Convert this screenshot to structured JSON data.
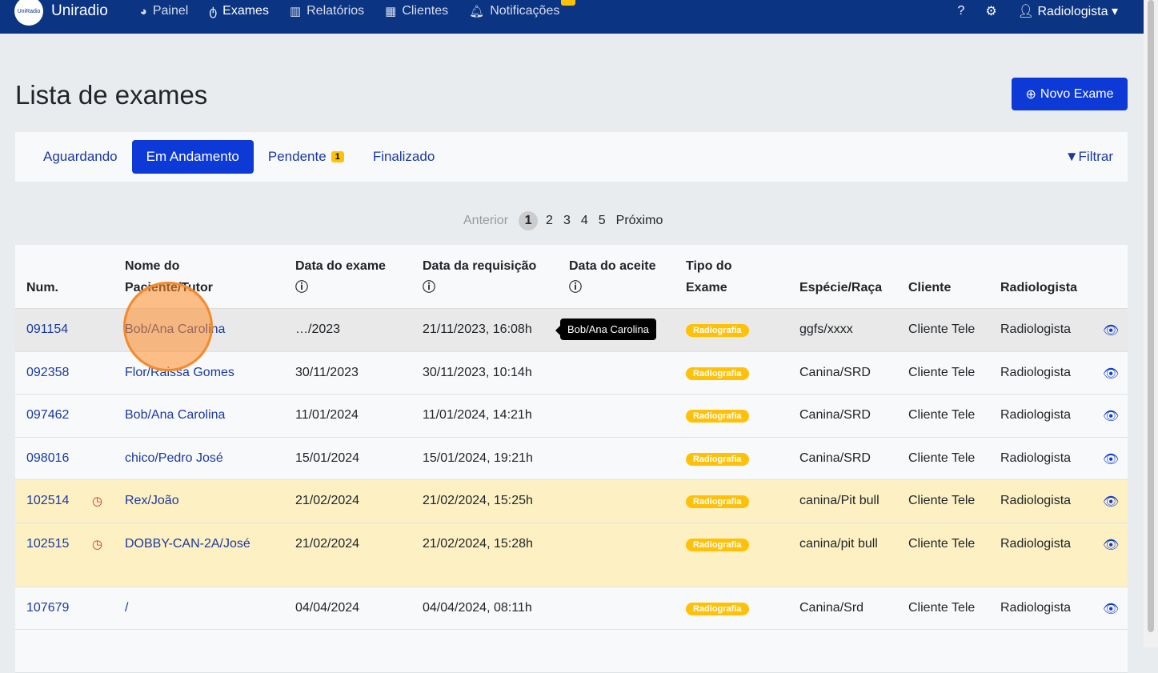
{
  "nav": {
    "brand": "Uniradio",
    "logo_text": "UniRadio",
    "items": [
      {
        "label": "Painel",
        "icon": "dashboard-icon"
      },
      {
        "label": "Exames",
        "icon": "stethoscope-icon"
      },
      {
        "label": "Relatórios",
        "icon": "chart-icon"
      },
      {
        "label": "Clientes",
        "icon": "building-icon"
      },
      {
        "label": "Notificações",
        "icon": "bell-icon"
      }
    ],
    "user": "Radiologista"
  },
  "page": {
    "title": "Lista de exames",
    "new_button": "Novo Exame"
  },
  "tabs": [
    {
      "label": "Aguardando"
    },
    {
      "label": "Em Andamento",
      "active": true
    },
    {
      "label": "Pendente",
      "badge": "1"
    },
    {
      "label": "Finalizado"
    }
  ],
  "filter": "Filtrar",
  "pagination": {
    "prev": "Anterior",
    "pages": [
      "1",
      "2",
      "3",
      "4",
      "5"
    ],
    "current": "1",
    "next": "Próximo"
  },
  "table": {
    "headers": [
      "Num.",
      "Nome do Paciente/Tutor",
      "Data do exame",
      "Data da requisição",
      "Data do aceite",
      "Tipo do Exame",
      "Espécie/Raça",
      "Cliente",
      "Radiologista"
    ],
    "rows": [
      {
        "num": "091154",
        "name": "Bob/Ana Carolina",
        "exam_date": "…/2023",
        "req": "21/11/2023, 16:08h",
        "accept": "",
        "type": "Radiografia",
        "species": "ggfs/xxxx",
        "client": "Cliente Tele",
        "radiologist": "Radiologista"
      },
      {
        "num": "092358",
        "name": "Flor/Raissa Gomes",
        "exam_date": "30/11/2023",
        "req": "30/11/2023, 10:14h",
        "accept": "",
        "type": "Radiografia",
        "species": "Canina/SRD",
        "client": "Cliente Tele",
        "radiologist": "Radiologista"
      },
      {
        "num": "097462",
        "name": "Bob/Ana Carolina",
        "exam_date": "11/01/2024",
        "req": "11/01/2024, 14:21h",
        "accept": "",
        "type": "Radiografia",
        "species": "Canina/SRD",
        "client": "Cliente Tele",
        "radiologist": "Radiologista"
      },
      {
        "num": "098016",
        "name": "chico/Pedro José",
        "exam_date": "15/01/2024",
        "req": "15/01/2024, 19:21h",
        "accept": "",
        "type": "Radiografia",
        "species": "Canina/SRD",
        "client": "Cliente Tele",
        "radiologist": "Radiologista"
      },
      {
        "num": "102514",
        "name": "Rex/João",
        "exam_date": "21/02/2024",
        "req": "21/02/2024, 15:25h",
        "accept": "",
        "type": "Radiografia",
        "species": "canina/Pit bull",
        "client": "Cliente Tele",
        "radiologist": "Radiologista",
        "late": true
      },
      {
        "num": "102515",
        "name": "DOBBY-CAN-2A/José",
        "exam_date": "21/02/2024",
        "req": "21/02/2024, 15:28h",
        "accept": "",
        "type": "Radiografia",
        "species": "canina/pit bull",
        "client": "Cliente Tele",
        "radiologist": "Radiologista",
        "late": true
      },
      {
        "num": "107679",
        "name": "/",
        "exam_date": "04/04/2024",
        "req": "04/04/2024, 08:11h",
        "accept": "",
        "type": "Radiografia",
        "species": "Canina/Srd",
        "client": "Cliente Tele",
        "radiologist": "Radiologista"
      }
    ]
  },
  "tooltip": "Bob/Ana Carolina"
}
